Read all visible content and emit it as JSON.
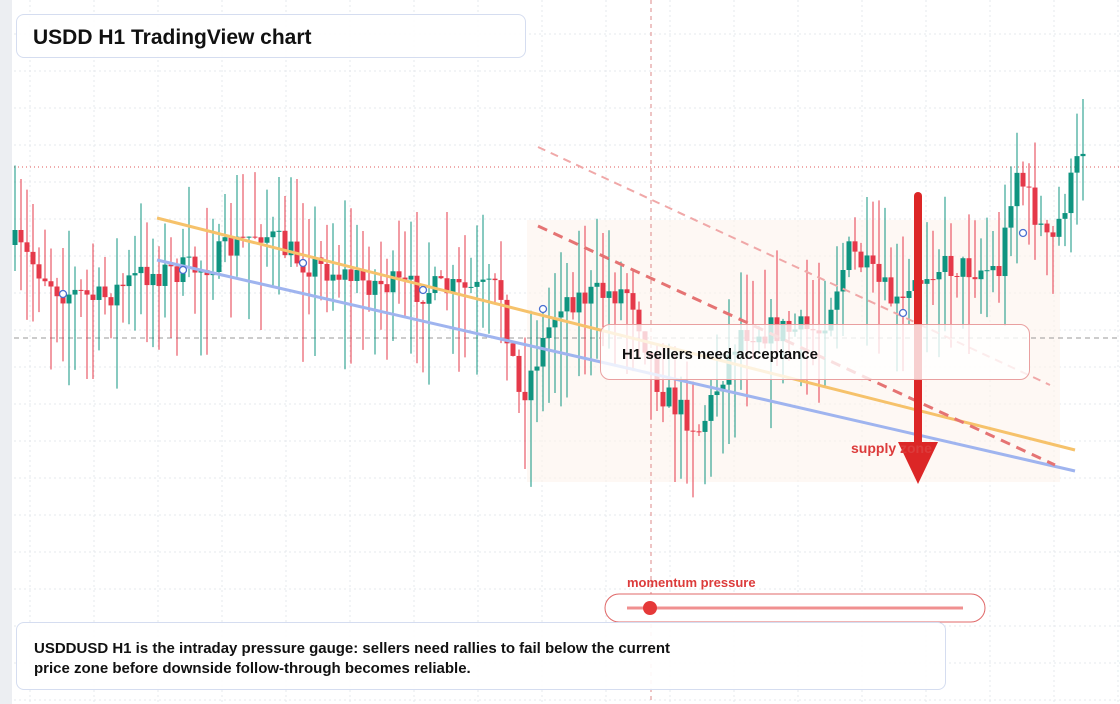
{
  "header": {
    "title": "USDD H1 TradingView chart"
  },
  "annotations": {
    "callout": "H1 sellers need acceptance",
    "zone": "supply zone",
    "gauge": "momentum pressure"
  },
  "caption": "USDDUSD H1 is the intraday pressure gauge: sellers need rallies to fail below the current price zone before downside follow-through becomes reliable."
}
